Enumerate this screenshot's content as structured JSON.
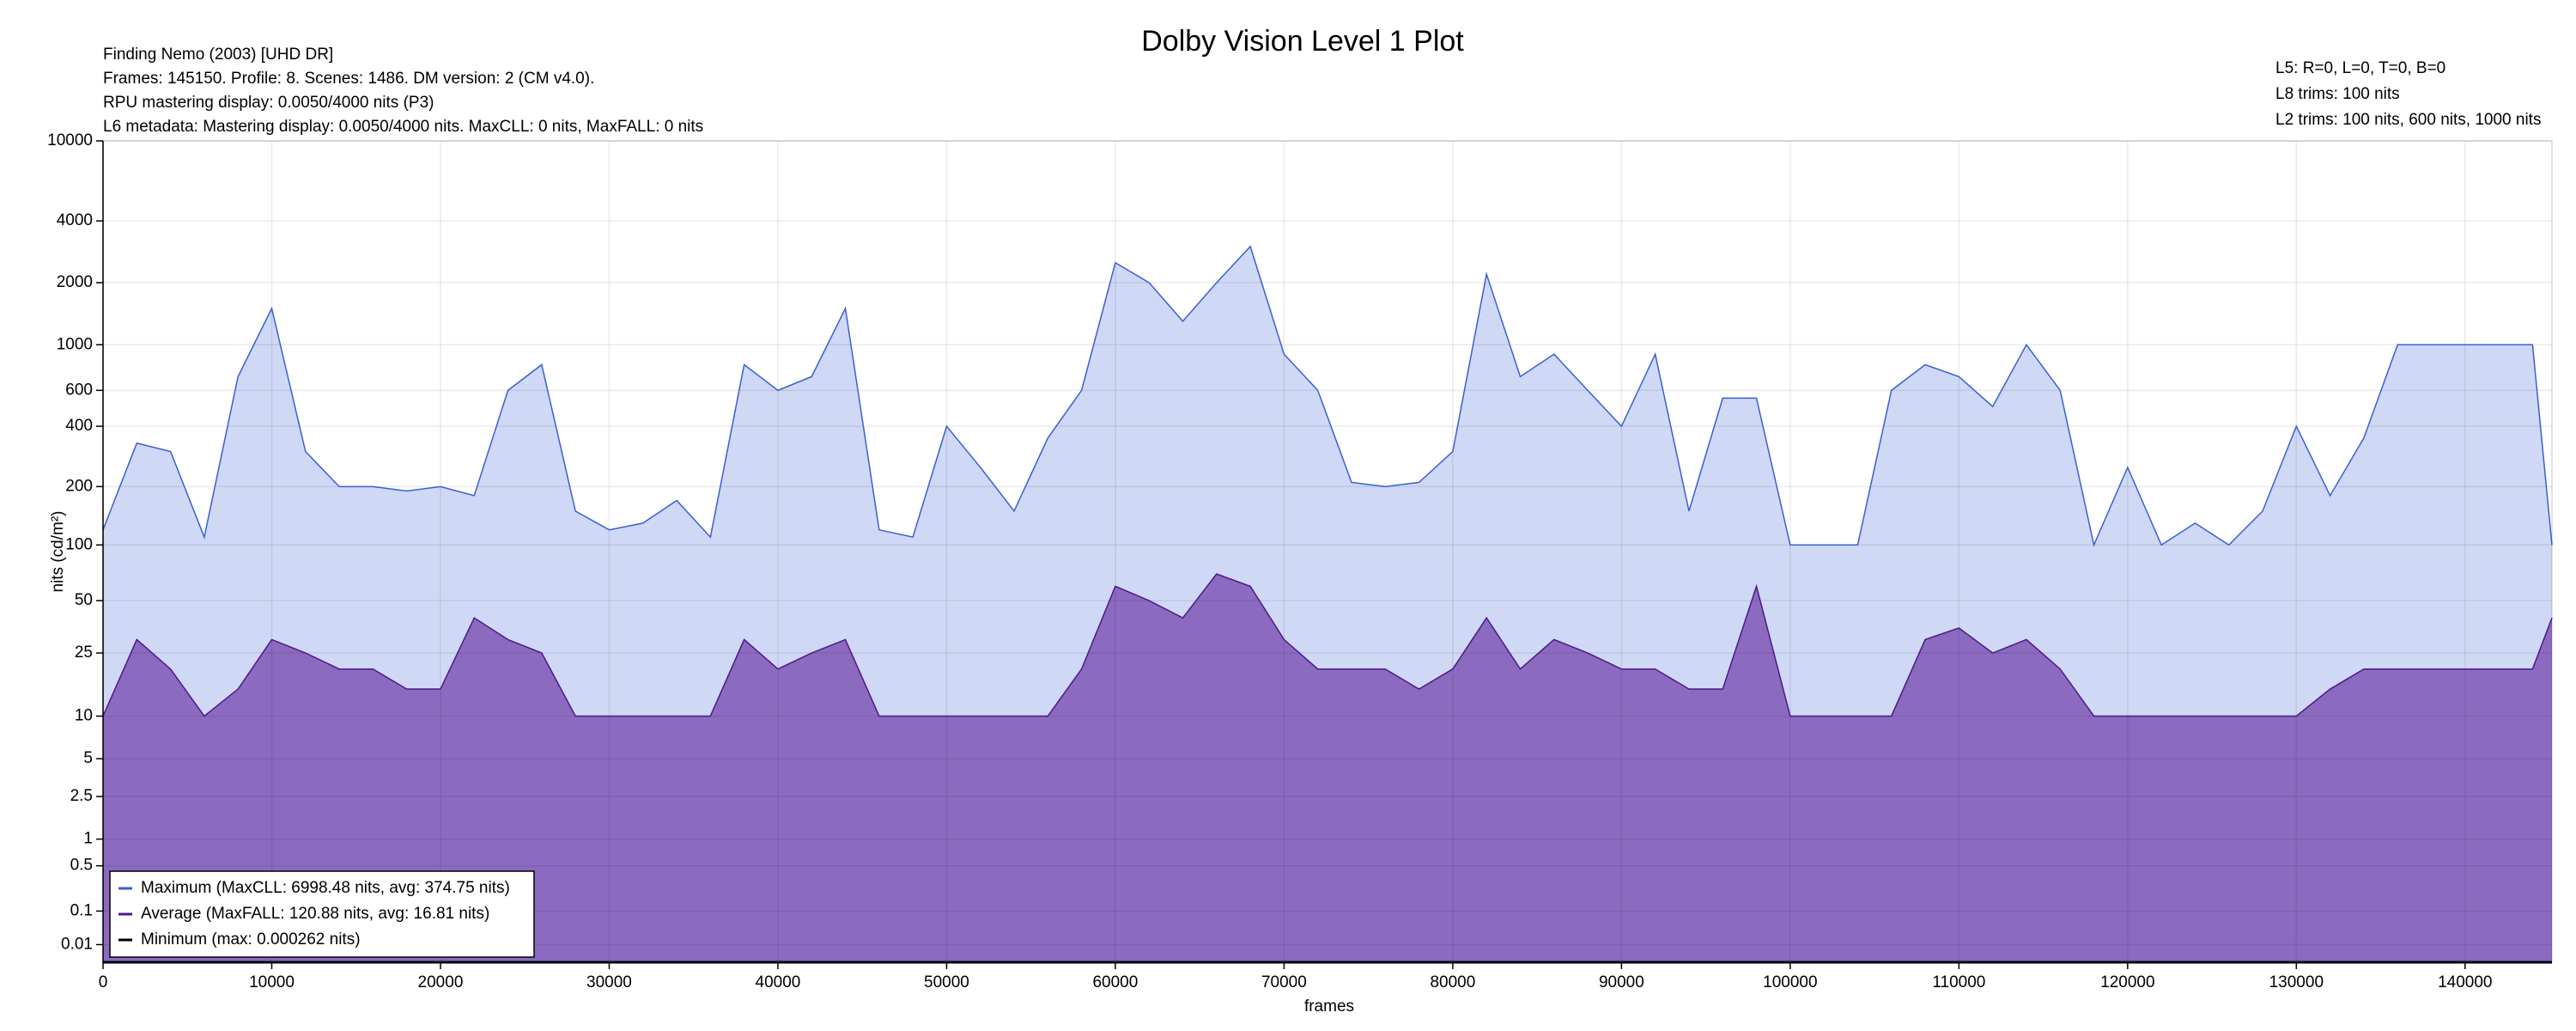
{
  "chart_data": {
    "type": "area",
    "title": "Dolby Vision Level 1 Plot",
    "info_left": [
      "Finding Nemo (2003) [UHD DR]",
      "Frames: 145150. Profile: 8. Scenes: 1486. DM version: 2 (CM v4.0).",
      "RPU mastering display: 0.0050/4000 nits  (P3)",
      "L6 metadata: Mastering display: 0.0050/4000 nits. MaxCLL: 0 nits, MaxFALL: 0 nits"
    ],
    "info_right": [
      "L5: R=0, L=0, T=0, B=0",
      "L8 trims: 100 nits",
      "L2 trims: 100 nits, 600 nits, 1000 nits"
    ],
    "xlabel": "frames",
    "ylabel": "nits (cd/m²)",
    "y_scale": "pq",
    "grid": true,
    "legend": "lower left",
    "xlim": [
      0,
      145150
    ],
    "ylim": [
      0,
      10000
    ],
    "xticks": [
      0,
      10000,
      20000,
      30000,
      40000,
      50000,
      60000,
      70000,
      80000,
      90000,
      100000,
      110000,
      120000,
      130000,
      140000
    ],
    "yticks": [
      0.01,
      0.1,
      0.5,
      1,
      2.5,
      5,
      10,
      25,
      50,
      100,
      200,
      400,
      600,
      1000,
      2000,
      4000,
      10000
    ],
    "x": [
      0,
      2000,
      4000,
      6000,
      8000,
      10000,
      12000,
      14000,
      16000,
      18000,
      20000,
      22000,
      24000,
      26000,
      28000,
      30000,
      32000,
      34000,
      36000,
      38000,
      40000,
      42000,
      44000,
      46000,
      48000,
      50000,
      52000,
      54000,
      56000,
      58000,
      60000,
      62000,
      64000,
      66000,
      68000,
      70000,
      72000,
      74000,
      76000,
      78000,
      80000,
      82000,
      84000,
      86000,
      88000,
      90000,
      92000,
      94000,
      96000,
      98000,
      100000,
      102000,
      104000,
      106000,
      108000,
      110000,
      112000,
      114000,
      116000,
      118000,
      120000,
      122000,
      124000,
      126000,
      128000,
      130000,
      132000,
      134000,
      136000,
      138000,
      140000,
      142000,
      144000,
      145150
    ],
    "series": [
      {
        "name": "Maximum (MaxCLL: 6998.48 nits, avg: 374.75 nits)",
        "color": "#3a5fd0",
        "fill": "#cfd8f5",
        "values": [
          120,
          330,
          300,
          110,
          700,
          1500,
          300,
          200,
          200,
          190,
          200,
          180,
          600,
          800,
          150,
          120,
          130,
          170,
          110,
          800,
          600,
          700,
          1500,
          120,
          110,
          400,
          250,
          150,
          350,
          600,
          2500,
          2000,
          1300,
          2000,
          3000,
          900,
          600,
          210,
          200,
          210,
          300,
          2200,
          700,
          900,
          600,
          400,
          900,
          150,
          550,
          550,
          100,
          100,
          100,
          600,
          800,
          700,
          500,
          1000,
          600,
          100,
          250,
          100,
          130,
          100,
          150,
          400,
          180,
          350,
          1000,
          1000,
          1000,
          1000,
          1000,
          100
        ]
      },
      {
        "name": "Average (MaxFALL: 120.88 nits, avg: 16.81 nits)",
        "color": "#4b1a8a",
        "fill": "#8b6abf",
        "values": [
          10,
          30,
          20,
          10,
          15,
          30,
          25,
          20,
          20,
          15,
          15,
          40,
          30,
          25,
          10,
          10,
          10,
          10,
          10,
          30,
          20,
          25,
          30,
          10,
          10,
          10,
          10,
          10,
          10,
          20,
          60,
          50,
          40,
          70,
          60,
          30,
          20,
          20,
          20,
          15,
          20,
          40,
          20,
          30,
          25,
          20,
          20,
          15,
          15,
          60,
          10,
          10,
          10,
          10,
          30,
          35,
          25,
          30,
          20,
          10,
          10,
          10,
          10,
          10,
          10,
          10,
          15,
          20,
          20,
          20,
          20,
          20,
          20,
          40
        ]
      },
      {
        "name": "Minimum (max: 0.000262 nits)",
        "color": "#000000",
        "x": [
          0,
          145150
        ],
        "values": [
          0,
          0
        ]
      }
    ]
  }
}
